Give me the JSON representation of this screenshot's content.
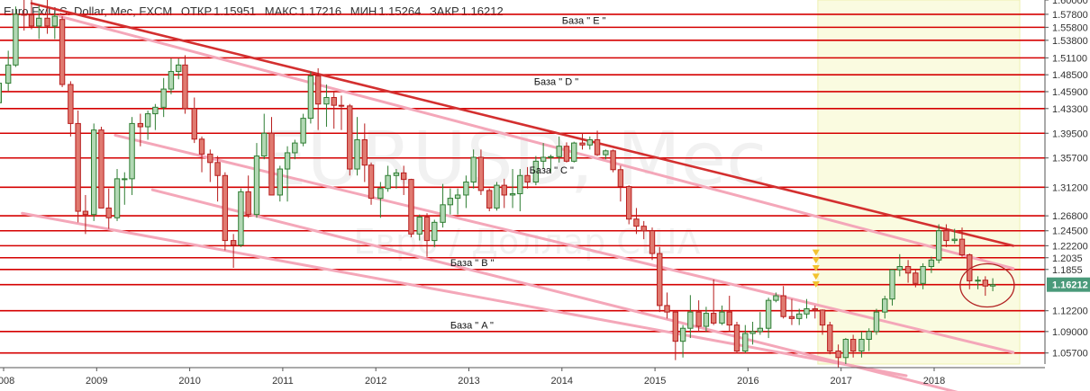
{
  "header": {
    "symbol": "Euro Fx/U.S. Dollar, Мес, FXCM",
    "open_label": "ОТКР",
    "open": "1.15951",
    "high_label": "МАКС",
    "high": "1.17216",
    "low_label": "МИН",
    "low": "1.15264",
    "close_label": "ЗАКР",
    "close": "1.16212"
  },
  "watermark": {
    "symbol": "EURUSD, Mec",
    "description": "Евро / Доллар США"
  },
  "colors": {
    "up": "#2e7d32",
    "up_fill": "#b2d8b4",
    "down": "#b71c1c",
    "down_fill": "#e07a70",
    "level": "#d50000",
    "trend": "#d32f2f",
    "channel": "#f4a7b9",
    "highlight": "#fafbe0",
    "last_price": "#4a9a7a",
    "marker": "#f2c230"
  },
  "chart_data": {
    "type": "candlestick",
    "title": "Euro Fx/U.S. Dollar, Мес, FXCM",
    "ylim": [
      1.04,
      1.6
    ],
    "y_ticks": [
      1.6,
      1.578,
      1.558,
      1.538,
      1.511,
      1.485,
      1.459,
      1.433,
      1.395,
      1.357,
      1.312,
      1.268,
      1.245,
      1.222,
      1.2035,
      1.1855,
      1.16212,
      1.122,
      1.09,
      1.057
    ],
    "x_ticks": [
      "2008",
      "2009",
      "2010",
      "2011",
      "2012",
      "2013",
      "2014",
      "2015",
      "2016",
      "2017",
      "2018"
    ],
    "horizontal_levels": [
      1.578,
      1.558,
      1.538,
      1.511,
      1.485,
      1.459,
      1.433,
      1.395,
      1.357,
      1.312,
      1.268,
      1.245,
      1.222,
      1.2035,
      1.1855,
      1.16212,
      1.122,
      1.09,
      1.057
    ],
    "base_labels": [
      {
        "text": "База \" E \"",
        "t": 2014.0,
        "price": 1.569
      },
      {
        "text": "База \" D \"",
        "t": 2013.7,
        "price": 1.475
      },
      {
        "text": "База \" C \"",
        "t": 2013.65,
        "price": 1.339
      },
      {
        "text": "База \" B \"",
        "t": 2012.8,
        "price": 1.196
      },
      {
        "text": "База \" A \"",
        "t": 2012.8,
        "price": 1.1
      }
    ],
    "trendlines": [
      {
        "kind": "resistance",
        "from": [
          2008.3,
          1.595
        ],
        "to": [
          2018.85,
          1.222
        ]
      },
      {
        "kind": "channel",
        "from": [
          2008.6,
          1.575
        ],
        "to": [
          2018.85,
          1.187
        ]
      },
      {
        "kind": "channel",
        "from": [
          2009.2,
          1.392
        ],
        "to": [
          2018.85,
          1.058
        ]
      },
      {
        "kind": "channel",
        "from": [
          2009.6,
          1.308
        ],
        "to": [
          2018.85,
          0.975
        ]
      },
      {
        "kind": "channel",
        "from": [
          2008.2,
          1.272
        ],
        "to": [
          2017.7,
          1.022
        ]
      }
    ],
    "highlight_zone": {
      "from": 2016.75,
      "to": 2018.92
    },
    "markers": {
      "t": 2016.73,
      "prices": [
        1.212,
        1.2,
        1.188,
        1.175,
        1.163
      ]
    },
    "ellipse": {
      "t": 2018.57,
      "price": 1.161
    },
    "last_price": 1.16212,
    "candles": [
      {
        "t": 2007.95,
        "o": 1.442,
        "h": 1.486,
        "l": 1.439,
        "c": 1.472
      },
      {
        "t": 2008.05,
        "o": 1.472,
        "h": 1.522,
        "l": 1.46,
        "c": 1.5
      },
      {
        "t": 2008.13,
        "o": 1.5,
        "h": 1.59,
        "l": 1.497,
        "c": 1.578
      },
      {
        "t": 2008.22,
        "o": 1.578,
        "h": 1.6,
        "l": 1.553,
        "c": 1.577
      },
      {
        "t": 2008.3,
        "o": 1.577,
        "h": 1.6,
        "l": 1.555,
        "c": 1.56
      },
      {
        "t": 2008.38,
        "o": 1.56,
        "h": 1.592,
        "l": 1.54,
        "c": 1.572
      },
      {
        "t": 2008.47,
        "o": 1.572,
        "h": 1.601,
        "l": 1.548,
        "c": 1.56
      },
      {
        "t": 2008.55,
        "o": 1.56,
        "h": 1.58,
        "l": 1.54,
        "c": 1.575
      },
      {
        "t": 2008.63,
        "o": 1.57,
        "h": 1.575,
        "l": 1.466,
        "c": 1.47
      },
      {
        "t": 2008.72,
        "o": 1.47,
        "h": 1.475,
        "l": 1.39,
        "c": 1.41
      },
      {
        "t": 2008.8,
        "o": 1.41,
        "h": 1.43,
        "l": 1.258,
        "c": 1.275
      },
      {
        "t": 2008.88,
        "o": 1.275,
        "h": 1.3,
        "l": 1.24,
        "c": 1.27
      },
      {
        "t": 2008.97,
        "o": 1.27,
        "h": 1.41,
        "l": 1.26,
        "c": 1.4
      },
      {
        "t": 2009.05,
        "o": 1.4,
        "h": 1.405,
        "l": 1.28,
        "c": 1.28
      },
      {
        "t": 2009.13,
        "o": 1.28,
        "h": 1.31,
        "l": 1.248,
        "c": 1.265
      },
      {
        "t": 2009.22,
        "o": 1.265,
        "h": 1.34,
        "l": 1.26,
        "c": 1.325
      },
      {
        "t": 2009.3,
        "o": 1.325,
        "h": 1.335,
        "l": 1.285,
        "c": 1.325
      },
      {
        "t": 2009.38,
        "o": 1.325,
        "h": 1.42,
        "l": 1.3,
        "c": 1.41
      },
      {
        "t": 2009.47,
        "o": 1.41,
        "h": 1.425,
        "l": 1.375,
        "c": 1.405
      },
      {
        "t": 2009.55,
        "o": 1.405,
        "h": 1.43,
        "l": 1.385,
        "c": 1.425
      },
      {
        "t": 2009.63,
        "o": 1.425,
        "h": 1.44,
        "l": 1.4,
        "c": 1.435
      },
      {
        "t": 2009.72,
        "o": 1.435,
        "h": 1.48,
        "l": 1.42,
        "c": 1.463
      },
      {
        "t": 2009.8,
        "o": 1.463,
        "h": 1.51,
        "l": 1.455,
        "c": 1.49
      },
      {
        "t": 2009.88,
        "o": 1.49,
        "h": 1.51,
        "l": 1.478,
        "c": 1.5
      },
      {
        "t": 2009.95,
        "o": 1.5,
        "h": 1.515,
        "l": 1.425,
        "c": 1.433
      },
      {
        "t": 2010.05,
        "o": 1.433,
        "h": 1.45,
        "l": 1.38,
        "c": 1.386
      },
      {
        "t": 2010.13,
        "o": 1.386,
        "h": 1.39,
        "l": 1.335,
        "c": 1.363
      },
      {
        "t": 2010.22,
        "o": 1.363,
        "h": 1.37,
        "l": 1.32,
        "c": 1.35
      },
      {
        "t": 2010.3,
        "o": 1.35,
        "h": 1.36,
        "l": 1.29,
        "c": 1.33
      },
      {
        "t": 2010.38,
        "o": 1.33,
        "h": 1.335,
        "l": 1.215,
        "c": 1.23
      },
      {
        "t": 2010.47,
        "o": 1.23,
        "h": 1.24,
        "l": 1.188,
        "c": 1.223
      },
      {
        "t": 2010.55,
        "o": 1.223,
        "h": 1.31,
        "l": 1.22,
        "c": 1.305
      },
      {
        "t": 2010.63,
        "o": 1.305,
        "h": 1.33,
        "l": 1.265,
        "c": 1.27
      },
      {
        "t": 2010.72,
        "o": 1.27,
        "h": 1.38,
        "l": 1.265,
        "c": 1.36
      },
      {
        "t": 2010.8,
        "o": 1.36,
        "h": 1.425,
        "l": 1.355,
        "c": 1.395
      },
      {
        "t": 2010.88,
        "o": 1.395,
        "h": 1.42,
        "l": 1.3,
        "c": 1.3
      },
      {
        "t": 2010.97,
        "o": 1.3,
        "h": 1.345,
        "l": 1.29,
        "c": 1.34
      },
      {
        "t": 2011.05,
        "o": 1.34,
        "h": 1.375,
        "l": 1.29,
        "c": 1.365
      },
      {
        "t": 2011.13,
        "o": 1.365,
        "h": 1.385,
        "l": 1.355,
        "c": 1.38
      },
      {
        "t": 2011.22,
        "o": 1.38,
        "h": 1.425,
        "l": 1.375,
        "c": 1.418
      },
      {
        "t": 2011.3,
        "o": 1.418,
        "h": 1.49,
        "l": 1.41,
        "c": 1.483
      },
      {
        "t": 2011.38,
        "o": 1.483,
        "h": 1.495,
        "l": 1.4,
        "c": 1.44
      },
      {
        "t": 2011.47,
        "o": 1.44,
        "h": 1.47,
        "l": 1.405,
        "c": 1.45
      },
      {
        "t": 2011.55,
        "o": 1.45,
        "h": 1.46,
        "l": 1.402,
        "c": 1.438
      },
      {
        "t": 2011.63,
        "o": 1.438,
        "h": 1.453,
        "l": 1.4,
        "c": 1.437
      },
      {
        "t": 2011.72,
        "o": 1.437,
        "h": 1.44,
        "l": 1.33,
        "c": 1.34
      },
      {
        "t": 2011.8,
        "o": 1.34,
        "h": 1.42,
        "l": 1.33,
        "c": 1.385
      },
      {
        "t": 2011.88,
        "o": 1.385,
        "h": 1.41,
        "l": 1.32,
        "c": 1.346
      },
      {
        "t": 2011.95,
        "o": 1.346,
        "h": 1.35,
        "l": 1.285,
        "c": 1.295
      },
      {
        "t": 2012.05,
        "o": 1.295,
        "h": 1.32,
        "l": 1.265,
        "c": 1.31
      },
      {
        "t": 2012.13,
        "o": 1.31,
        "h": 1.345,
        "l": 1.305,
        "c": 1.33
      },
      {
        "t": 2012.22,
        "o": 1.33,
        "h": 1.34,
        "l": 1.31,
        "c": 1.334
      },
      {
        "t": 2012.3,
        "o": 1.334,
        "h": 1.345,
        "l": 1.3,
        "c": 1.324
      },
      {
        "t": 2012.38,
        "o": 1.324,
        "h": 1.325,
        "l": 1.235,
        "c": 1.24
      },
      {
        "t": 2012.47,
        "o": 1.24,
        "h": 1.27,
        "l": 1.23,
        "c": 1.266
      },
      {
        "t": 2012.55,
        "o": 1.266,
        "h": 1.272,
        "l": 1.205,
        "c": 1.23
      },
      {
        "t": 2012.63,
        "o": 1.23,
        "h": 1.262,
        "l": 1.22,
        "c": 1.258
      },
      {
        "t": 2012.72,
        "o": 1.258,
        "h": 1.317,
        "l": 1.25,
        "c": 1.285
      },
      {
        "t": 2012.8,
        "o": 1.285,
        "h": 1.31,
        "l": 1.27,
        "c": 1.295
      },
      {
        "t": 2012.88,
        "o": 1.295,
        "h": 1.31,
        "l": 1.27,
        "c": 1.3
      },
      {
        "t": 2012.97,
        "o": 1.3,
        "h": 1.33,
        "l": 1.28,
        "c": 1.32
      },
      {
        "t": 2013.05,
        "o": 1.32,
        "h": 1.37,
        "l": 1.31,
        "c": 1.358
      },
      {
        "t": 2013.13,
        "o": 1.358,
        "h": 1.37,
        "l": 1.3,
        "c": 1.307
      },
      {
        "t": 2013.22,
        "o": 1.307,
        "h": 1.31,
        "l": 1.275,
        "c": 1.28
      },
      {
        "t": 2013.3,
        "o": 1.28,
        "h": 1.32,
        "l": 1.276,
        "c": 1.315
      },
      {
        "t": 2013.38,
        "o": 1.315,
        "h": 1.325,
        "l": 1.28,
        "c": 1.3
      },
      {
        "t": 2013.47,
        "o": 1.3,
        "h": 1.34,
        "l": 1.28,
        "c": 1.302
      },
      {
        "t": 2013.55,
        "o": 1.302,
        "h": 1.34,
        "l": 1.275,
        "c": 1.33
      },
      {
        "t": 2013.63,
        "o": 1.33,
        "h": 1.343,
        "l": 1.31,
        "c": 1.32
      },
      {
        "t": 2013.72,
        "o": 1.32,
        "h": 1.36,
        "l": 1.315,
        "c": 1.352
      },
      {
        "t": 2013.8,
        "o": 1.352,
        "h": 1.38,
        "l": 1.34,
        "c": 1.358
      },
      {
        "t": 2013.88,
        "o": 1.358,
        "h": 1.362,
        "l": 1.335,
        "c": 1.359
      },
      {
        "t": 2013.97,
        "o": 1.359,
        "h": 1.39,
        "l": 1.35,
        "c": 1.375
      },
      {
        "t": 2014.05,
        "o": 1.375,
        "h": 1.381,
        "l": 1.35,
        "c": 1.352
      },
      {
        "t": 2014.13,
        "o": 1.352,
        "h": 1.382,
        "l": 1.35,
        "c": 1.38
      },
      {
        "t": 2014.22,
        "o": 1.38,
        "h": 1.395,
        "l": 1.37,
        "c": 1.377
      },
      {
        "t": 2014.3,
        "o": 1.377,
        "h": 1.39,
        "l": 1.37,
        "c": 1.385
      },
      {
        "t": 2014.38,
        "o": 1.385,
        "h": 1.399,
        "l": 1.36,
        "c": 1.362
      },
      {
        "t": 2014.47,
        "o": 1.362,
        "h": 1.37,
        "l": 1.355,
        "c": 1.368
      },
      {
        "t": 2014.55,
        "o": 1.368,
        "h": 1.37,
        "l": 1.335,
        "c": 1.339
      },
      {
        "t": 2014.63,
        "o": 1.339,
        "h": 1.345,
        "l": 1.29,
        "c": 1.313
      },
      {
        "t": 2014.72,
        "o": 1.313,
        "h": 1.315,
        "l": 1.255,
        "c": 1.263
      },
      {
        "t": 2014.8,
        "o": 1.263,
        "h": 1.28,
        "l": 1.24,
        "c": 1.252
      },
      {
        "t": 2014.88,
        "o": 1.252,
        "h": 1.26,
        "l": 1.232,
        "c": 1.245
      },
      {
        "t": 2014.97,
        "o": 1.245,
        "h": 1.25,
        "l": 1.2,
        "c": 1.21
      },
      {
        "t": 2015.05,
        "o": 1.21,
        "h": 1.22,
        "l": 1.12,
        "c": 1.13
      },
      {
        "t": 2015.13,
        "o": 1.13,
        "h": 1.15,
        "l": 1.11,
        "c": 1.12
      },
      {
        "t": 2015.22,
        "o": 1.12,
        "h": 1.12,
        "l": 1.046,
        "c": 1.075
      },
      {
        "t": 2015.3,
        "o": 1.075,
        "h": 1.1,
        "l": 1.05,
        "c": 1.095
      },
      {
        "t": 2015.38,
        "o": 1.095,
        "h": 1.146,
        "l": 1.08,
        "c": 1.12
      },
      {
        "t": 2015.47,
        "o": 1.12,
        "h": 1.138,
        "l": 1.09,
        "c": 1.098
      },
      {
        "t": 2015.55,
        "o": 1.098,
        "h": 1.128,
        "l": 1.09,
        "c": 1.118
      },
      {
        "t": 2015.63,
        "o": 1.118,
        "h": 1.17,
        "l": 1.1,
        "c": 1.103
      },
      {
        "t": 2015.72,
        "o": 1.103,
        "h": 1.13,
        "l": 1.1,
        "c": 1.12
      },
      {
        "t": 2015.8,
        "o": 1.12,
        "h": 1.145,
        "l": 1.09,
        "c": 1.1
      },
      {
        "t": 2015.88,
        "o": 1.1,
        "h": 1.105,
        "l": 1.056,
        "c": 1.06
      },
      {
        "t": 2015.97,
        "o": 1.06,
        "h": 1.1,
        "l": 1.057,
        "c": 1.087
      },
      {
        "t": 2016.05,
        "o": 1.087,
        "h": 1.105,
        "l": 1.07,
        "c": 1.09
      },
      {
        "t": 2016.13,
        "o": 1.09,
        "h": 1.12,
        "l": 1.085,
        "c": 1.095
      },
      {
        "t": 2016.22,
        "o": 1.095,
        "h": 1.142,
        "l": 1.08,
        "c": 1.138
      },
      {
        "t": 2016.3,
        "o": 1.138,
        "h": 1.15,
        "l": 1.135,
        "c": 1.145
      },
      {
        "t": 2016.38,
        "o": 1.145,
        "h": 1.16,
        "l": 1.11,
        "c": 1.113
      },
      {
        "t": 2016.47,
        "o": 1.113,
        "h": 1.14,
        "l": 1.1,
        "c": 1.11
      },
      {
        "t": 2016.55,
        "o": 1.11,
        "h": 1.125,
        "l": 1.1,
        "c": 1.117
      },
      {
        "t": 2016.63,
        "o": 1.117,
        "h": 1.14,
        "l": 1.11,
        "c": 1.125
      },
      {
        "t": 2016.72,
        "o": 1.125,
        "h": 1.13,
        "l": 1.11,
        "c": 1.123
      },
      {
        "t": 2016.8,
        "o": 1.123,
        "h": 1.124,
        "l": 1.085,
        "c": 1.1
      },
      {
        "t": 2016.88,
        "o": 1.1,
        "h": 1.105,
        "l": 1.055,
        "c": 1.06
      },
      {
        "t": 2016.97,
        "o": 1.06,
        "h": 1.07,
        "l": 1.034,
        "c": 1.05
      },
      {
        "t": 2017.05,
        "o": 1.05,
        "h": 1.08,
        "l": 1.04,
        "c": 1.078
      },
      {
        "t": 2017.13,
        "o": 1.078,
        "h": 1.085,
        "l": 1.05,
        "c": 1.06
      },
      {
        "t": 2017.22,
        "o": 1.06,
        "h": 1.09,
        "l": 1.05,
        "c": 1.078
      },
      {
        "t": 2017.3,
        "o": 1.078,
        "h": 1.095,
        "l": 1.06,
        "c": 1.09
      },
      {
        "t": 2017.38,
        "o": 1.09,
        "h": 1.125,
        "l": 1.085,
        "c": 1.12
      },
      {
        "t": 2017.47,
        "o": 1.12,
        "h": 1.145,
        "l": 1.11,
        "c": 1.14
      },
      {
        "t": 2017.55,
        "o": 1.14,
        "h": 1.185,
        "l": 1.13,
        "c": 1.185
      },
      {
        "t": 2017.63,
        "o": 1.185,
        "h": 1.209,
        "l": 1.175,
        "c": 1.19
      },
      {
        "t": 2017.72,
        "o": 1.19,
        "h": 1.2,
        "l": 1.165,
        "c": 1.18
      },
      {
        "t": 2017.8,
        "o": 1.18,
        "h": 1.185,
        "l": 1.158,
        "c": 1.164
      },
      {
        "t": 2017.88,
        "o": 1.164,
        "h": 1.195,
        "l": 1.155,
        "c": 1.19
      },
      {
        "t": 2017.97,
        "o": 1.19,
        "h": 1.205,
        "l": 1.18,
        "c": 1.2
      },
      {
        "t": 2018.05,
        "o": 1.2,
        "h": 1.255,
        "l": 1.195,
        "c": 1.245
      },
      {
        "t": 2018.13,
        "o": 1.245,
        "h": 1.255,
        "l": 1.22,
        "c": 1.23
      },
      {
        "t": 2018.22,
        "o": 1.23,
        "h": 1.248,
        "l": 1.225,
        "c": 1.232
      },
      {
        "t": 2018.3,
        "o": 1.232,
        "h": 1.25,
        "l": 1.205,
        "c": 1.208
      },
      {
        "t": 2018.38,
        "o": 1.208,
        "h": 1.21,
        "l": 1.155,
        "c": 1.168
      },
      {
        "t": 2018.47,
        "o": 1.168,
        "h": 1.175,
        "l": 1.155,
        "c": 1.169
      },
      {
        "t": 2018.55,
        "o": 1.169,
        "h": 1.175,
        "l": 1.145,
        "c": 1.16
      },
      {
        "t": 2018.63,
        "o": 1.16,
        "h": 1.172,
        "l": 1.152,
        "c": 1.162
      }
    ]
  }
}
